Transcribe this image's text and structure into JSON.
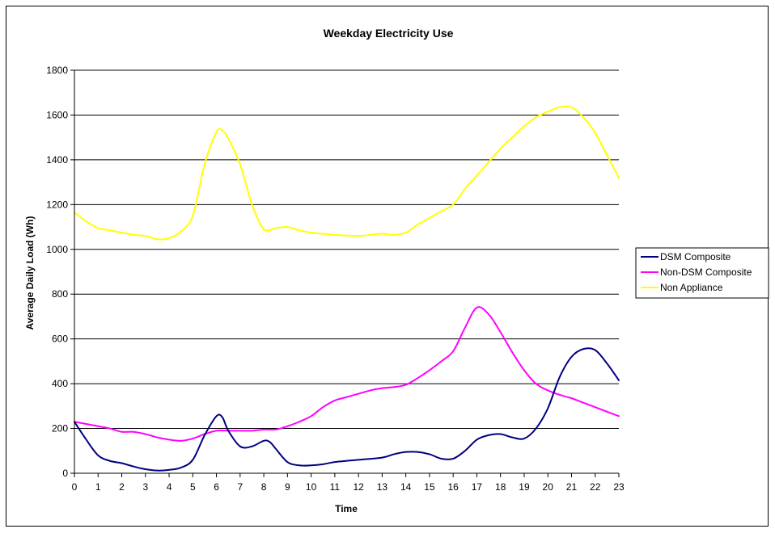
{
  "chart_data": {
    "type": "line",
    "title": "Weekday Electricity Use",
    "xlabel": "Time",
    "ylabel": "Average Daily Load (Wh)",
    "xlim": [
      0,
      23
    ],
    "ylim": [
      0,
      1800
    ],
    "x_ticks": [
      0,
      1,
      2,
      3,
      4,
      5,
      6,
      7,
      8,
      9,
      10,
      11,
      12,
      13,
      14,
      15,
      16,
      17,
      18,
      19,
      20,
      21,
      22,
      23
    ],
    "y_ticks": [
      0,
      200,
      400,
      600,
      800,
      1000,
      1200,
      1400,
      1600,
      1800
    ],
    "grid": "horizontal",
    "legend_position": "right",
    "series": [
      {
        "name": "DSM Composite",
        "color": "#000080",
        "points": [
          [
            0,
            230
          ],
          [
            0.5,
            150
          ],
          [
            1,
            80
          ],
          [
            1.5,
            55
          ],
          [
            2,
            45
          ],
          [
            2.5,
            30
          ],
          [
            3,
            18
          ],
          [
            3.5,
            12
          ],
          [
            4,
            15
          ],
          [
            4.5,
            25
          ],
          [
            5,
            60
          ],
          [
            5.5,
            170
          ],
          [
            6,
            255
          ],
          [
            6.25,
            250
          ],
          [
            6.5,
            190
          ],
          [
            7,
            120
          ],
          [
            7.5,
            120
          ],
          [
            8,
            145
          ],
          [
            8.25,
            140
          ],
          [
            8.5,
            110
          ],
          [
            9,
            50
          ],
          [
            9.5,
            35
          ],
          [
            10,
            35
          ],
          [
            10.5,
            40
          ],
          [
            11,
            50
          ],
          [
            12,
            60
          ],
          [
            13,
            70
          ],
          [
            13.5,
            85
          ],
          [
            14,
            95
          ],
          [
            14.5,
            95
          ],
          [
            15,
            85
          ],
          [
            15.5,
            65
          ],
          [
            16,
            65
          ],
          [
            16.5,
            100
          ],
          [
            17,
            150
          ],
          [
            17.5,
            170
          ],
          [
            18,
            175
          ],
          [
            18.5,
            160
          ],
          [
            19,
            155
          ],
          [
            19.5,
            200
          ],
          [
            20,
            290
          ],
          [
            20.5,
            430
          ],
          [
            21,
            520
          ],
          [
            21.5,
            555
          ],
          [
            22,
            550
          ],
          [
            22.5,
            490
          ],
          [
            23,
            415
          ]
        ]
      },
      {
        "name": "Non-DSM Composite",
        "color": "#ff00ff",
        "points": [
          [
            0,
            230
          ],
          [
            0.5,
            220
          ],
          [
            1,
            210
          ],
          [
            1.5,
            200
          ],
          [
            2,
            185
          ],
          [
            2.5,
            185
          ],
          [
            3,
            175
          ],
          [
            3.5,
            160
          ],
          [
            4,
            150
          ],
          [
            4.5,
            145
          ],
          [
            5,
            155
          ],
          [
            5.5,
            175
          ],
          [
            6,
            190
          ],
          [
            6.5,
            190
          ],
          [
            7,
            190
          ],
          [
            7.5,
            190
          ],
          [
            8,
            195
          ],
          [
            8.5,
            195
          ],
          [
            9,
            210
          ],
          [
            9.5,
            230
          ],
          [
            10,
            255
          ],
          [
            10.5,
            295
          ],
          [
            11,
            325
          ],
          [
            11.5,
            340
          ],
          [
            12,
            355
          ],
          [
            12.5,
            370
          ],
          [
            13,
            380
          ],
          [
            13.5,
            385
          ],
          [
            14,
            395
          ],
          [
            14.5,
            425
          ],
          [
            15,
            460
          ],
          [
            15.5,
            500
          ],
          [
            16,
            545
          ],
          [
            16.5,
            650
          ],
          [
            17,
            740
          ],
          [
            17.5,
            710
          ],
          [
            18,
            630
          ],
          [
            18.5,
            540
          ],
          [
            19,
            460
          ],
          [
            19.5,
            400
          ],
          [
            20,
            370
          ],
          [
            20.5,
            350
          ],
          [
            21,
            335
          ],
          [
            21.5,
            315
          ],
          [
            22,
            295
          ],
          [
            22.5,
            275
          ],
          [
            23,
            255
          ]
        ]
      },
      {
        "name": "Non Appliance",
        "color": "#ffff00",
        "points": [
          [
            0,
            1165
          ],
          [
            0.5,
            1125
          ],
          [
            1,
            1095
          ],
          [
            1.5,
            1085
          ],
          [
            2,
            1075
          ],
          [
            2.5,
            1065
          ],
          [
            3,
            1060
          ],
          [
            3.5,
            1045
          ],
          [
            4,
            1050
          ],
          [
            4.5,
            1080
          ],
          [
            5,
            1150
          ],
          [
            5.5,
            1380
          ],
          [
            6,
            1525
          ],
          [
            6.25,
            1530
          ],
          [
            6.5,
            1495
          ],
          [
            7,
            1380
          ],
          [
            7.5,
            1200
          ],
          [
            8,
            1090
          ],
          [
            8.5,
            1095
          ],
          [
            9,
            1100
          ],
          [
            9.5,
            1085
          ],
          [
            10,
            1075
          ],
          [
            11,
            1065
          ],
          [
            12,
            1060
          ],
          [
            12.5,
            1065
          ],
          [
            13,
            1070
          ],
          [
            13.5,
            1065
          ],
          [
            14,
            1075
          ],
          [
            14.5,
            1110
          ],
          [
            15,
            1140
          ],
          [
            15.5,
            1170
          ],
          [
            16,
            1200
          ],
          [
            16.5,
            1270
          ],
          [
            17,
            1330
          ],
          [
            17.5,
            1390
          ],
          [
            18,
            1450
          ],
          [
            18.5,
            1500
          ],
          [
            19,
            1550
          ],
          [
            19.5,
            1590
          ],
          [
            20,
            1615
          ],
          [
            20.5,
            1635
          ],
          [
            21,
            1635
          ],
          [
            21.5,
            1590
          ],
          [
            22,
            1520
          ],
          [
            22.5,
            1420
          ],
          [
            23,
            1320
          ]
        ]
      }
    ]
  }
}
